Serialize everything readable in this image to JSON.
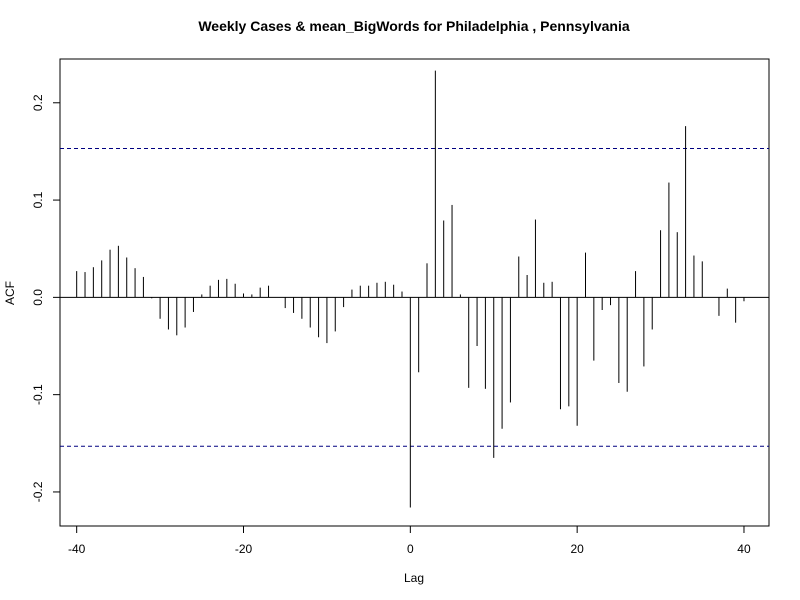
{
  "chart_data": {
    "type": "bar",
    "subtype": "cross-correlation stem plot",
    "title": "Weekly Cases & mean_BigWords for Philadelphia , Pennsylvania",
    "xlabel": "Lag",
    "ylabel": "ACF",
    "xlim": [
      -42,
      43
    ],
    "ylim": [
      -0.235,
      0.245
    ],
    "x_ticks": [
      -40,
      -20,
      0,
      20,
      40
    ],
    "x_tick_labels": [
      "-40",
      "-20",
      "0",
      "20",
      "40"
    ],
    "y_ticks": [
      -0.2,
      -0.1,
      0.0,
      0.1,
      0.2
    ],
    "y_tick_labels": [
      "-0.2",
      "-0.1",
      "0.0",
      "0.1",
      "0.2"
    ],
    "confidence_bound": 0.153,
    "confidence_line_color": "#000080",
    "zero_line": true,
    "grid": false,
    "lags": [
      -40,
      -39,
      -38,
      -37,
      -36,
      -35,
      -34,
      -33,
      -32,
      -31,
      -30,
      -29,
      -28,
      -27,
      -26,
      -25,
      -24,
      -23,
      -22,
      -21,
      -20,
      -19,
      -18,
      -17,
      -16,
      -15,
      -14,
      -13,
      -12,
      -11,
      -10,
      -9,
      -8,
      -7,
      -6,
      -5,
      -4,
      -3,
      -2,
      -1,
      0,
      1,
      2,
      3,
      4,
      5,
      6,
      7,
      8,
      9,
      10,
      11,
      12,
      13,
      14,
      15,
      16,
      17,
      18,
      19,
      20,
      21,
      22,
      23,
      24,
      25,
      26,
      27,
      28,
      29,
      30,
      31,
      32,
      33,
      34,
      35,
      36,
      37,
      38,
      39,
      40
    ],
    "values": [
      0.027,
      0.026,
      0.031,
      0.038,
      0.049,
      0.053,
      0.041,
      0.03,
      0.021,
      -0.001,
      -0.022,
      -0.033,
      -0.039,
      -0.031,
      -0.015,
      0.003,
      0.012,
      0.018,
      0.019,
      0.014,
      0.004,
      0.003,
      0.01,
      0.012,
      0.0,
      -0.011,
      -0.016,
      -0.022,
      -0.031,
      -0.041,
      -0.047,
      -0.035,
      -0.01,
      0.008,
      0.012,
      0.012,
      0.015,
      0.016,
      0.013,
      0.006,
      -0.216,
      -0.077,
      0.035,
      0.233,
      0.079,
      0.095,
      0.003,
      -0.093,
      -0.05,
      -0.094,
      -0.165,
      -0.135,
      -0.108,
      0.042,
      0.023,
      0.08,
      0.015,
      0.016,
      -0.115,
      -0.112,
      -0.132,
      0.046,
      -0.065,
      -0.013,
      -0.008,
      -0.088,
      -0.097,
      0.027,
      -0.071,
      -0.033,
      0.069,
      0.118,
      0.067,
      0.176,
      0.043,
      0.037,
      0.0,
      -0.019,
      0.009,
      -0.026,
      -0.004
    ]
  }
}
